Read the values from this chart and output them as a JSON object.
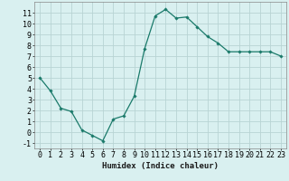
{
  "x": [
    0,
    1,
    2,
    3,
    4,
    5,
    6,
    7,
    8,
    9,
    10,
    11,
    12,
    13,
    14,
    15,
    16,
    17,
    18,
    19,
    20,
    21,
    22,
    23
  ],
  "y": [
    5.0,
    3.8,
    2.2,
    1.9,
    0.2,
    -0.3,
    -0.8,
    1.2,
    1.5,
    3.3,
    7.7,
    10.7,
    11.3,
    10.5,
    10.6,
    9.7,
    8.8,
    8.2,
    7.4,
    7.4,
    7.4,
    7.4,
    7.4,
    7.0
  ],
  "line_color": "#1a7a6a",
  "marker": "D",
  "marker_size": 1.8,
  "background_color": "#d9f0f0",
  "grid_color": "#b8d4d4",
  "xlabel": "Humidex (Indice chaleur)",
  "xlabel_fontsize": 6.5,
  "tick_fontsize": 6,
  "ylim": [
    -1.5,
    12.0
  ],
  "xlim": [
    -0.5,
    23.5
  ],
  "yticks": [
    -1,
    0,
    1,
    2,
    3,
    4,
    5,
    6,
    7,
    8,
    9,
    10,
    11
  ],
  "xticks": [
    0,
    1,
    2,
    3,
    4,
    5,
    6,
    7,
    8,
    9,
    10,
    11,
    12,
    13,
    14,
    15,
    16,
    17,
    18,
    19,
    20,
    21,
    22,
    23
  ]
}
